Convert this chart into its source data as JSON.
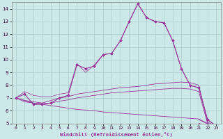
{
  "title": "",
  "xlabel": "Windchill (Refroidissement éolien,°C)",
  "bg_color": "#cce8e8",
  "grid_color": "#aacccc",
  "line_color": "#993399",
  "xlim": [
    -0.5,
    23.5
  ],
  "ylim": [
    5,
    14.5
  ],
  "xticks": [
    0,
    1,
    2,
    3,
    4,
    5,
    6,
    7,
    8,
    9,
    10,
    11,
    12,
    13,
    14,
    15,
    16,
    17,
    18,
    19,
    20,
    21,
    22,
    23
  ],
  "yticks": [
    5,
    6,
    7,
    8,
    9,
    10,
    11,
    12,
    13,
    14
  ],
  "series_main": {
    "x": [
      0,
      1,
      2,
      3,
      4,
      5,
      6,
      7,
      8,
      9,
      10,
      11,
      12,
      13,
      14,
      15,
      16,
      17,
      18,
      19,
      20,
      21,
      22,
      23
    ],
    "y": [
      7.0,
      7.3,
      6.5,
      6.5,
      6.6,
      7.0,
      7.2,
      9.6,
      9.3,
      9.5,
      10.4,
      10.5,
      11.5,
      13.0,
      14.4,
      13.3,
      13.0,
      12.9,
      11.5,
      9.3,
      8.0,
      7.8,
      5.3,
      4.8
    ]
  },
  "series_upper_band": {
    "x": [
      0,
      1,
      2,
      3,
      4,
      5,
      6,
      7,
      8,
      9,
      10,
      11,
      12,
      13,
      14,
      15,
      16,
      17,
      18,
      19,
      20,
      21,
      22,
      23
    ],
    "y": [
      7.0,
      7.5,
      7.2,
      7.1,
      7.1,
      7.3,
      7.4,
      9.7,
      9.0,
      9.6,
      10.4,
      10.5,
      11.5,
      13.0,
      14.4,
      13.3,
      13.0,
      12.9,
      11.5,
      9.3,
      8.0,
      7.8,
      5.3,
      4.8
    ]
  },
  "series_mid_upper": {
    "x": [
      0,
      1,
      2,
      3,
      4,
      5,
      6,
      7,
      8,
      9,
      10,
      11,
      12,
      13,
      14,
      15,
      16,
      17,
      18,
      19,
      20,
      21,
      22,
      23
    ],
    "y": [
      7.0,
      6.8,
      6.7,
      6.6,
      6.8,
      7.0,
      7.1,
      7.3,
      7.4,
      7.5,
      7.6,
      7.7,
      7.8,
      7.85,
      7.9,
      8.0,
      8.1,
      8.15,
      8.2,
      8.25,
      8.2,
      8.0,
      5.1,
      4.8
    ]
  },
  "series_mid_lower": {
    "x": [
      0,
      1,
      2,
      3,
      4,
      5,
      6,
      7,
      8,
      9,
      10,
      11,
      12,
      13,
      14,
      15,
      16,
      17,
      18,
      19,
      20,
      21,
      22,
      23
    ],
    "y": [
      7.0,
      6.7,
      6.6,
      6.55,
      6.6,
      6.75,
      6.85,
      7.0,
      7.1,
      7.2,
      7.3,
      7.4,
      7.45,
      7.5,
      7.55,
      7.6,
      7.65,
      7.7,
      7.75,
      7.75,
      7.7,
      7.5,
      5.0,
      4.8
    ]
  },
  "series_lower": {
    "x": [
      0,
      1,
      2,
      3,
      4,
      5,
      6,
      7,
      8,
      9,
      10,
      11,
      12,
      13,
      14,
      15,
      16,
      17,
      18,
      19,
      20,
      21,
      22,
      23
    ],
    "y": [
      7.0,
      6.8,
      6.6,
      6.5,
      6.4,
      6.3,
      6.2,
      6.1,
      6.05,
      6.0,
      5.9,
      5.85,
      5.8,
      5.75,
      5.7,
      5.65,
      5.6,
      5.55,
      5.5,
      5.45,
      5.4,
      5.35,
      5.0,
      4.8
    ]
  }
}
